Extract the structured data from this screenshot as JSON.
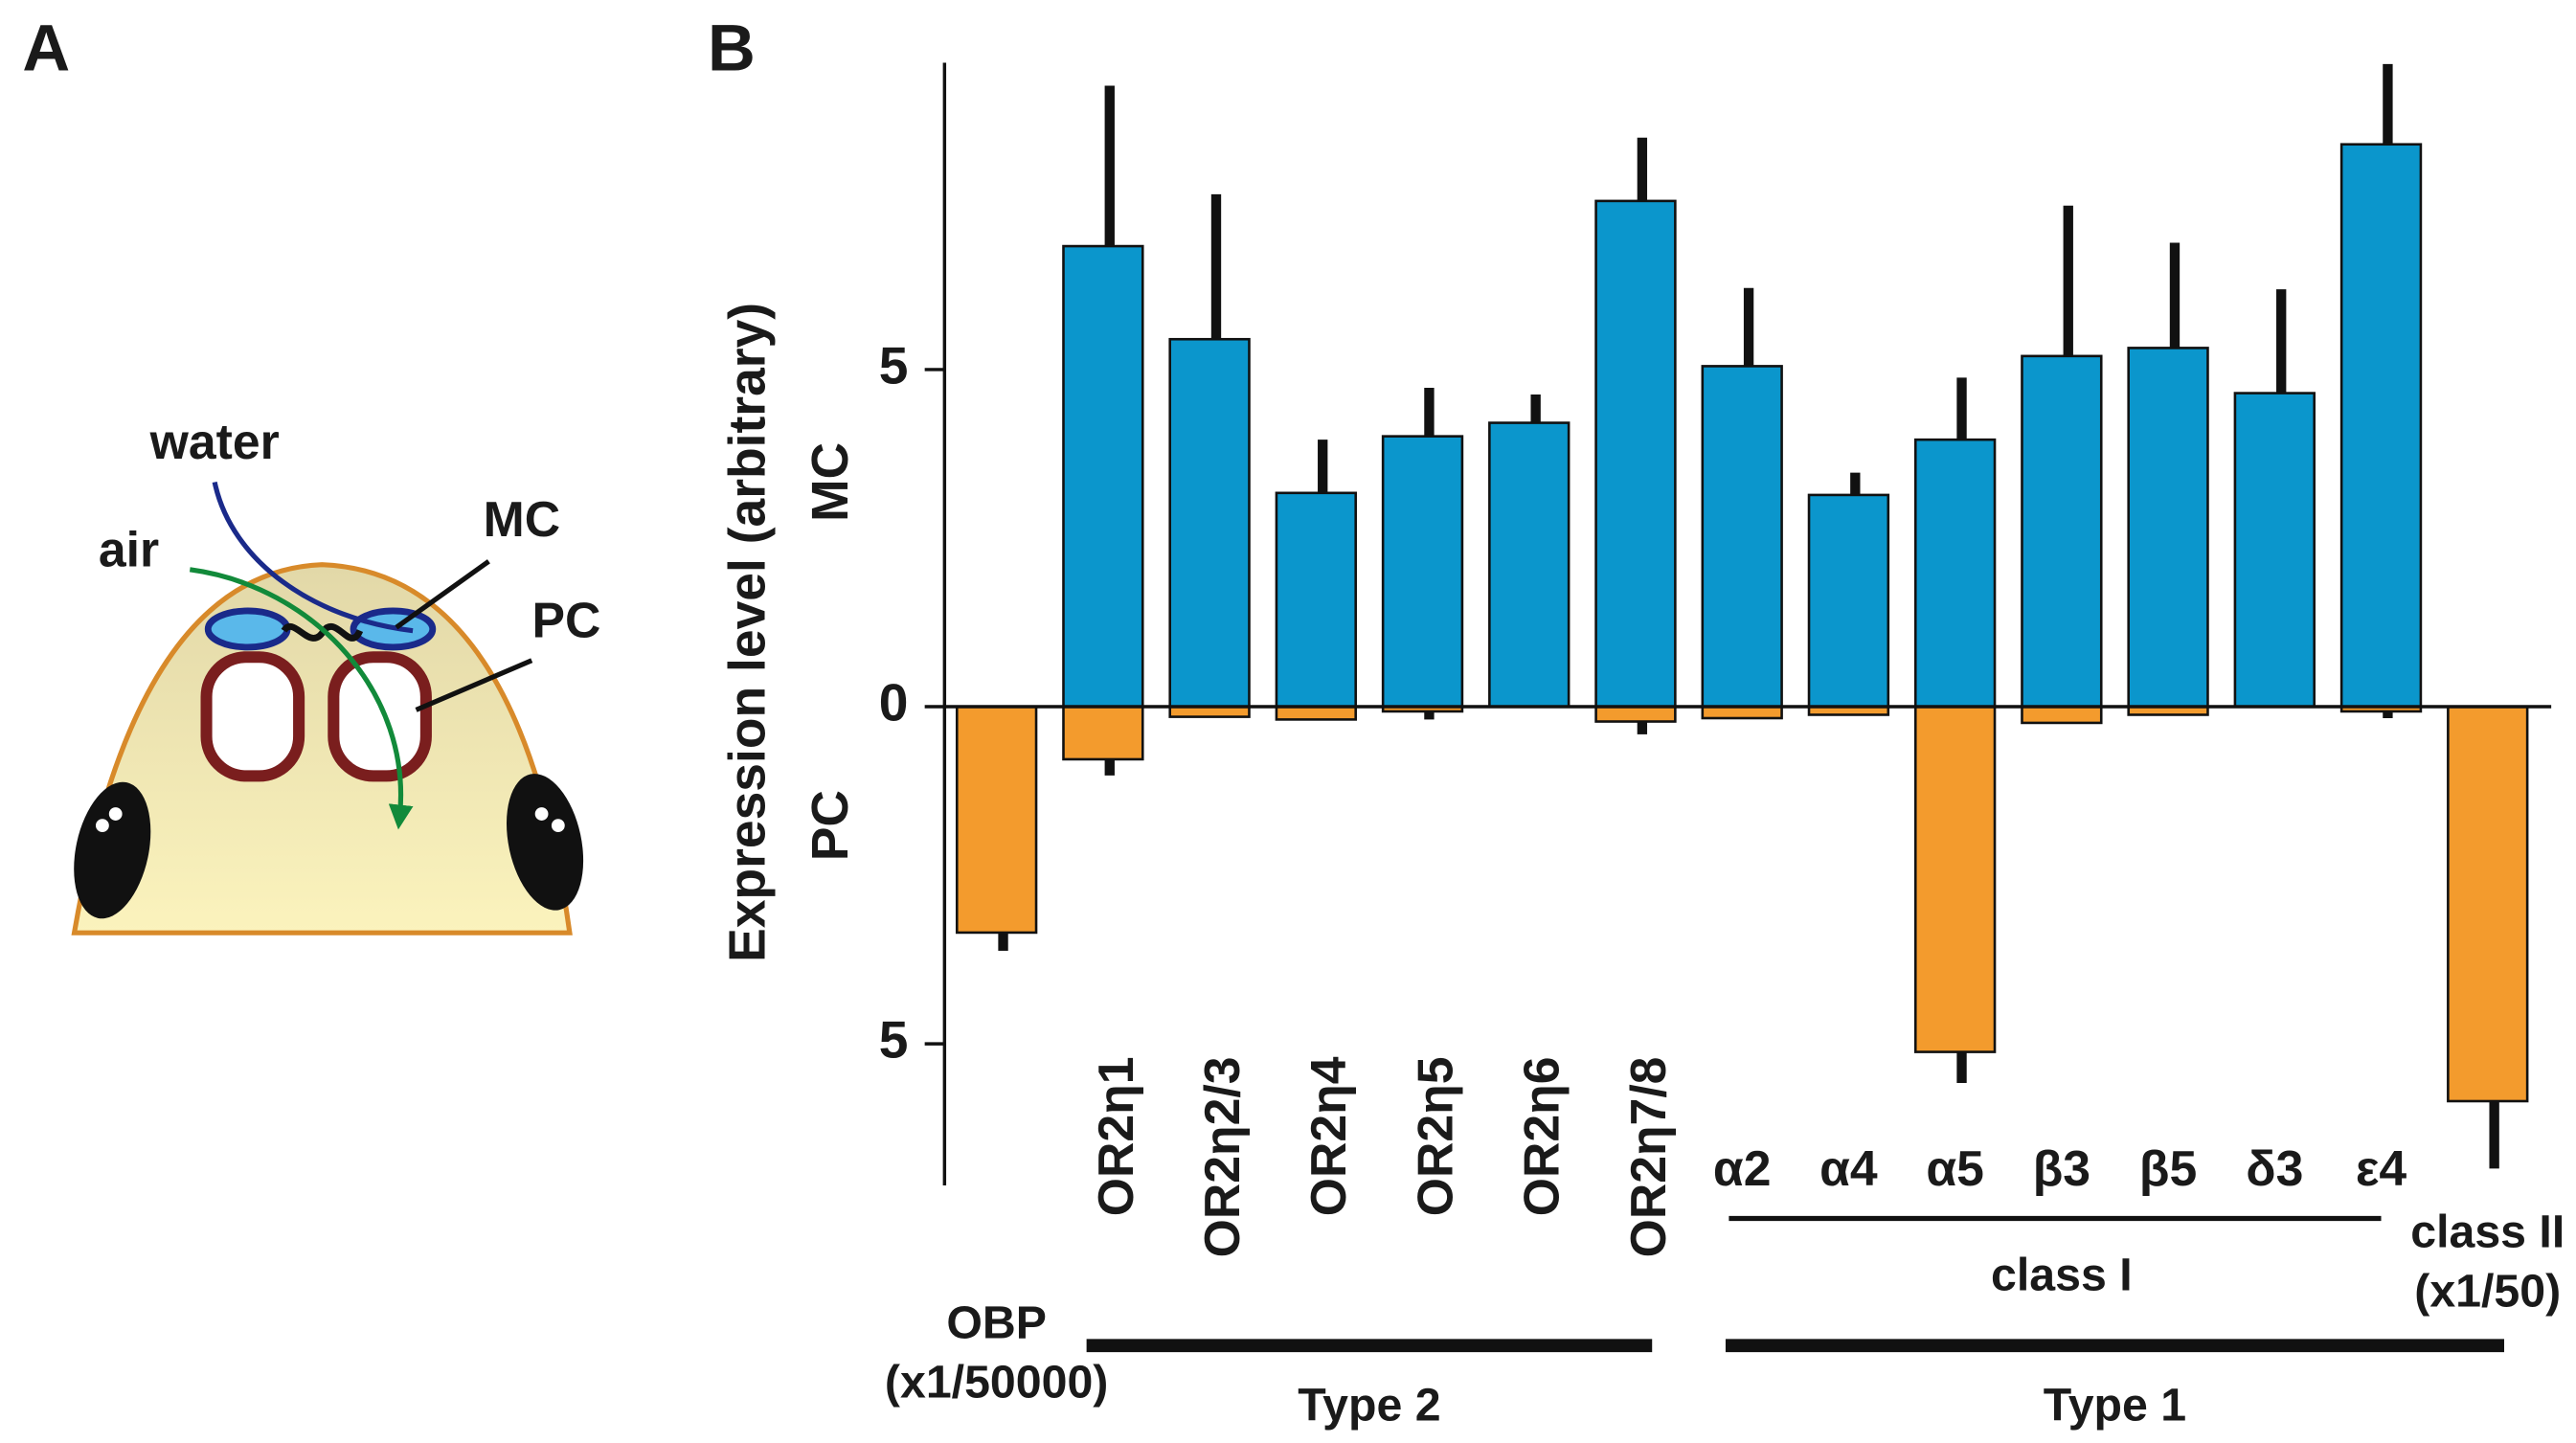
{
  "panel_a": {
    "label": "A",
    "water": "water",
    "air": "air",
    "mc": "MC",
    "pc": "PC"
  },
  "chart_data": {
    "type": "bar",
    "panel_label": "B",
    "y_label": "Expression level (arbitrary)",
    "categories": [
      "OBP",
      "OR2η1",
      "OR2η2/3",
      "OR2η4",
      "OR2η5",
      "OR2η6",
      "OR2η7/8",
      "α2",
      "α4",
      "α5",
      "β3",
      "β5",
      "δ3",
      "ε4",
      "class II"
    ],
    "category_notes": [
      "(x1/50000)",
      null,
      null,
      null,
      null,
      null,
      null,
      null,
      null,
      null,
      null,
      null,
      null,
      null,
      "(x1/50)"
    ],
    "series": [
      {
        "name": "MC",
        "color": "#0b96cc",
        "values": [
          0,
          6.83,
          5.45,
          3.17,
          4.01,
          4.21,
          7.5,
          5.05,
          3.14,
          3.96,
          5.2,
          5.32,
          4.65,
          8.34,
          0
        ],
        "errors": [
          null,
          2.38,
          2.15,
          0.79,
          0.72,
          0.42,
          0.94,
          1.16,
          0.33,
          0.92,
          2.23,
          1.56,
          1.54,
          1.19,
          null
        ]
      },
      {
        "name": "PC",
        "color": "#f39b2d",
        "values": [
          -3.35,
          -0.78,
          -0.15,
          -0.19,
          -0.07,
          0,
          -0.22,
          -0.17,
          -0.12,
          -5.12,
          -0.24,
          -0.12,
          0,
          -0.07,
          -5.85
        ],
        "errors": [
          0.27,
          0.24,
          null,
          null,
          0.12,
          null,
          0.19,
          null,
          null,
          0.46,
          null,
          null,
          null,
          0.1,
          1.0
        ]
      }
    ],
    "groups": [
      {
        "label": "class I",
        "style": "thin",
        "members": [
          "α2",
          "α4",
          "α5",
          "β3",
          "β5",
          "δ3",
          "ε4"
        ]
      },
      {
        "label": "Type 2",
        "style": "thick",
        "members": [
          "OR2η1",
          "OR2η2/3",
          "OR2η4",
          "OR2η5",
          "OR2η6",
          "OR2η7/8"
        ]
      },
      {
        "label": "Type 1",
        "style": "thick",
        "members": [
          "α2",
          "α4",
          "α5",
          "β3",
          "β5",
          "δ3",
          "ε4",
          "class II"
        ]
      }
    ],
    "ylim": [
      -7.1,
      9.55
    ],
    "yticks": [
      {
        "value": -5,
        "label": "5"
      },
      0,
      5
    ]
  }
}
